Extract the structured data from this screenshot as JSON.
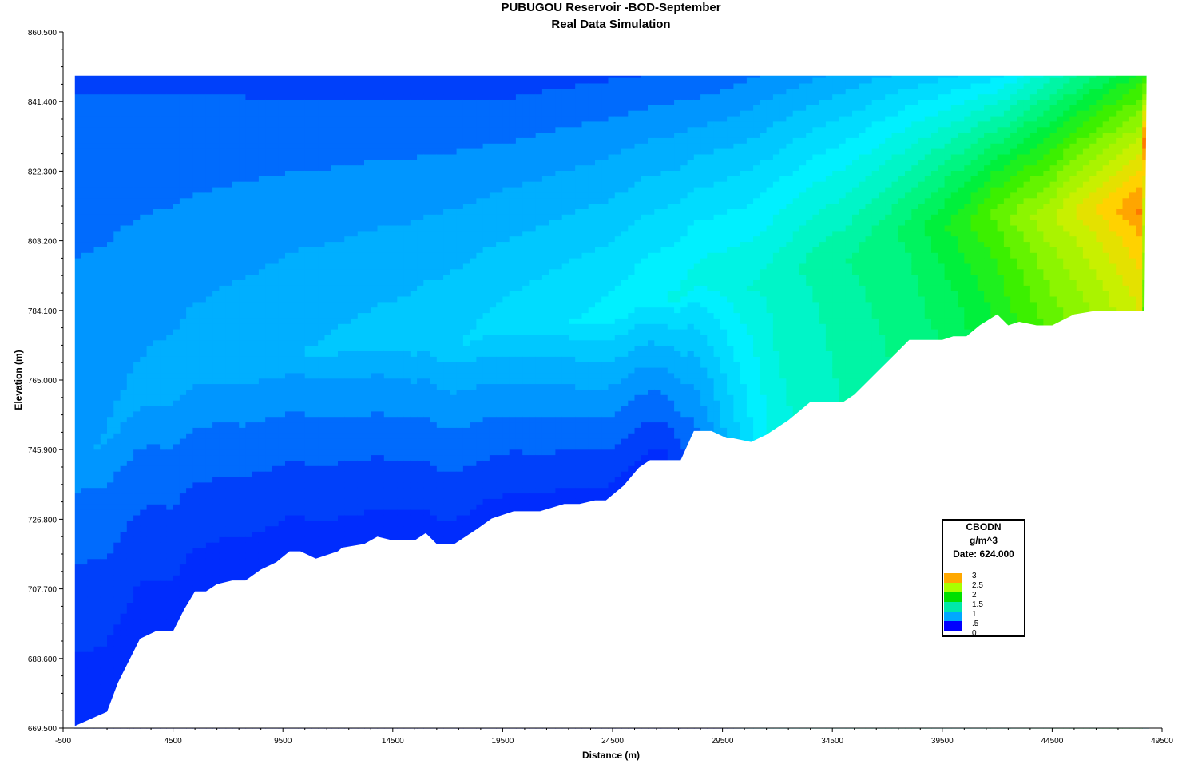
{
  "chart_data": {
    "type": "heatmap",
    "title": "PUBUGOU Reservoir -BOD-September",
    "subtitle": "Real Data Simulation",
    "xlabel": "Distance (m)",
    "ylabel": "Elevation (m)",
    "xlim": [
      -500,
      49500
    ],
    "ylim": [
      669.5,
      860.5
    ],
    "x_ticks": [
      "-500",
      "4500",
      "9500",
      "14500",
      "19500",
      "24500",
      "29500",
      "34500",
      "39500",
      "44500",
      "49500"
    ],
    "y_ticks": [
      "860.500",
      "841.400",
      "822.300",
      "803.200",
      "784.100",
      "765.000",
      "745.900",
      "726.800",
      "707.700",
      "688.600",
      "669.500"
    ],
    "water_surface_elevation": 848.5,
    "legend": {
      "title": "CBODN",
      "units": "g/m^3",
      "date_label": "Date: 624.000",
      "levels": [
        {
          "label": "3",
          "color": "#ffa800"
        },
        {
          "label": "2.5",
          "color": "#a8ff00"
        },
        {
          "label": "2",
          "color": "#00e000"
        },
        {
          "label": "1.5",
          "color": "#00e8a8"
        },
        {
          "label": "1",
          "color": "#00a8ff"
        },
        {
          "label": ".5",
          "color": "#0000ff"
        },
        {
          "label": "0",
          "color": ""
        }
      ]
    },
    "bottom_profile": [
      [
        0,
        670
      ],
      [
        1500,
        674
      ],
      [
        2000,
        682
      ],
      [
        3000,
        694
      ],
      [
        3700,
        696
      ],
      [
        4500,
        696
      ],
      [
        5000,
        702
      ],
      [
        5500,
        707
      ],
      [
        6000,
        707
      ],
      [
        6500,
        709
      ],
      [
        7200,
        710
      ],
      [
        7800,
        710
      ],
      [
        8500,
        713
      ],
      [
        9200,
        715
      ],
      [
        9800,
        718
      ],
      [
        10300,
        718
      ],
      [
        11000,
        716
      ],
      [
        12000,
        718
      ],
      [
        12200,
        719
      ],
      [
        13200,
        720
      ],
      [
        13800,
        722
      ],
      [
        14500,
        721
      ],
      [
        15500,
        721
      ],
      [
        16000,
        723
      ],
      [
        16500,
        720
      ],
      [
        17300,
        720
      ],
      [
        18300,
        724
      ],
      [
        19000,
        727
      ],
      [
        20000,
        729
      ],
      [
        21200,
        729
      ],
      [
        22300,
        731
      ],
      [
        23000,
        731
      ],
      [
        23700,
        732
      ],
      [
        24200,
        732
      ],
      [
        25000,
        736
      ],
      [
        25700,
        741
      ],
      [
        26200,
        743
      ],
      [
        27600,
        743
      ],
      [
        28200,
        751
      ],
      [
        29000,
        751
      ],
      [
        29700,
        749
      ],
      [
        30000,
        749
      ],
      [
        30800,
        748
      ],
      [
        31500,
        750
      ],
      [
        32500,
        754
      ],
      [
        33500,
        759
      ],
      [
        34300,
        759
      ],
      [
        35000,
        759
      ],
      [
        35500,
        761
      ],
      [
        36500,
        767
      ],
      [
        37500,
        773
      ],
      [
        38000,
        776
      ],
      [
        39000,
        776
      ],
      [
        39500,
        776
      ],
      [
        40000,
        777
      ],
      [
        40600,
        777
      ],
      [
        41200,
        780
      ],
      [
        42000,
        783
      ],
      [
        42500,
        780
      ],
      [
        43000,
        781
      ],
      [
        43800,
        780
      ],
      [
        44500,
        780
      ],
      [
        45500,
        783
      ],
      [
        46500,
        784
      ],
      [
        48700,
        784
      ],
      [
        48800,
        848.5
      ]
    ],
    "value_at": "CBODN concentration interpolated from surface-layer, mid-depth and bottom-layer profiles along the reservoir",
    "surface_layer": [
      [
        0,
        0.3
      ],
      [
        20000,
        0.25
      ],
      [
        29000,
        0.35
      ],
      [
        35000,
        0.6
      ],
      [
        42000,
        0.9
      ],
      [
        48800,
        1.9
      ]
    ],
    "mid_depth": [
      [
        0,
        0.55
      ],
      [
        15000,
        0.75
      ],
      [
        25000,
        1.0
      ],
      [
        31000,
        1.2
      ],
      [
        38000,
        1.6
      ],
      [
        48800,
        3.0
      ]
    ],
    "bottom_layer": [
      [
        0,
        0.1
      ],
      [
        15000,
        0.12
      ],
      [
        27000,
        0.15
      ],
      [
        32000,
        1.15
      ],
      [
        40000,
        1.6
      ],
      [
        48800,
        2.6
      ]
    ]
  }
}
